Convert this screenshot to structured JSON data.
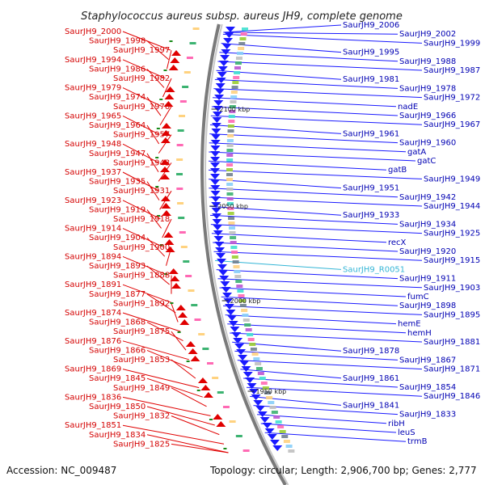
{
  "title": "Staphylococcus aureus subsp. aureus JH9, complete genome",
  "footer": {
    "accession": "Accession: NC_009487",
    "summary": "Topology: circular; Length: 2,906,700 bp; Genes: 2,777"
  },
  "scale_ticks": [
    "2100 kbp",
    "2050 kbp",
    "2000 kbp",
    "1950 kbp"
  ],
  "left_labels": [
    "SaurJH9_2000",
    "SaurJH9_1998",
    "SaurJH9_1997",
    "SaurJH9_1994",
    "SaurJH9_1986",
    "SaurJH9_1982",
    "SaurJH9_1979",
    "SaurJH9_1974",
    "SaurJH9_1970",
    "SaurJH9_1965",
    "SaurJH9_1964",
    "SaurJH9_1957",
    "SaurJH9_1948",
    "SaurJH9_1947",
    "SaurJH9_1943",
    "SaurJH9_1937",
    "SaurJH9_1935",
    "SaurJH9_1931",
    "SaurJH9_1923",
    "SaurJH9_1919",
    "SaurJH9_1918",
    "SaurJH9_1914",
    "SaurJH9_1904",
    "SaurJH9_1900",
    "SaurJH9_1894",
    "SaurJH9_1893",
    "SaurJH9_1888",
    "SaurJH9_1891",
    "SaurJH9_1877",
    "SaurJH9_1892",
    "SaurJH9_1874",
    "SaurJH9_1868",
    "SaurJH9_1875",
    "SaurJH9_1876",
    "SaurJH9_1866",
    "SaurJH9_1853",
    "SaurJH9_1869",
    "SaurJH9_1845",
    "SaurJH9_1849",
    "SaurJH9_1836",
    "SaurJH9_1850",
    "SaurJH9_1832",
    "SaurJH9_1851",
    "SaurJH9_1834",
    "SaurJH9_1825"
  ],
  "right_labels": [
    "SaurJH9_2006",
    "SaurJH9_2002",
    "SaurJH9_1999",
    "SaurJH9_1995",
    "SaurJH9_1988",
    "SaurJH9_1987",
    "SaurJH9_1981",
    "SaurJH9_1978",
    "SaurJH9_1972",
    "nadE",
    "SaurJH9_1966",
    "SaurJH9_1967",
    "SaurJH9_1961",
    "SaurJH9_1960",
    "gatA",
    "gatC",
    "gatB",
    "SaurJH9_1949",
    "SaurJH9_1951",
    "SaurJH9_1942",
    "SaurJH9_1944",
    "SaurJH9_1933",
    "SaurJH9_1934",
    "SaurJH9_1925",
    "recX",
    "SaurJH9_1920",
    "SaurJH9_1915",
    "SaurJH9_R0051",
    "SaurJH9_1911",
    "SaurJH9_1903",
    "fumC",
    "SaurJH9_1898",
    "SaurJH9_1895",
    "hemE",
    "hemH",
    "SaurJH9_1881",
    "SaurJH9_1878",
    "SaurJH9_1867",
    "SaurJH9_1871",
    "SaurJH9_1861",
    "SaurJH9_1854",
    "SaurJH9_1846",
    "SaurJH9_1841",
    "SaurJH9_1833",
    "ribH",
    "leuS",
    "trmB"
  ],
  "colors": {
    "left_gene": "#e00000",
    "right_gene": "#1a1aff",
    "rna_gene": "#33b5d6",
    "backbone": "#7a7a7a",
    "tick": "#1a8a1a"
  }
}
